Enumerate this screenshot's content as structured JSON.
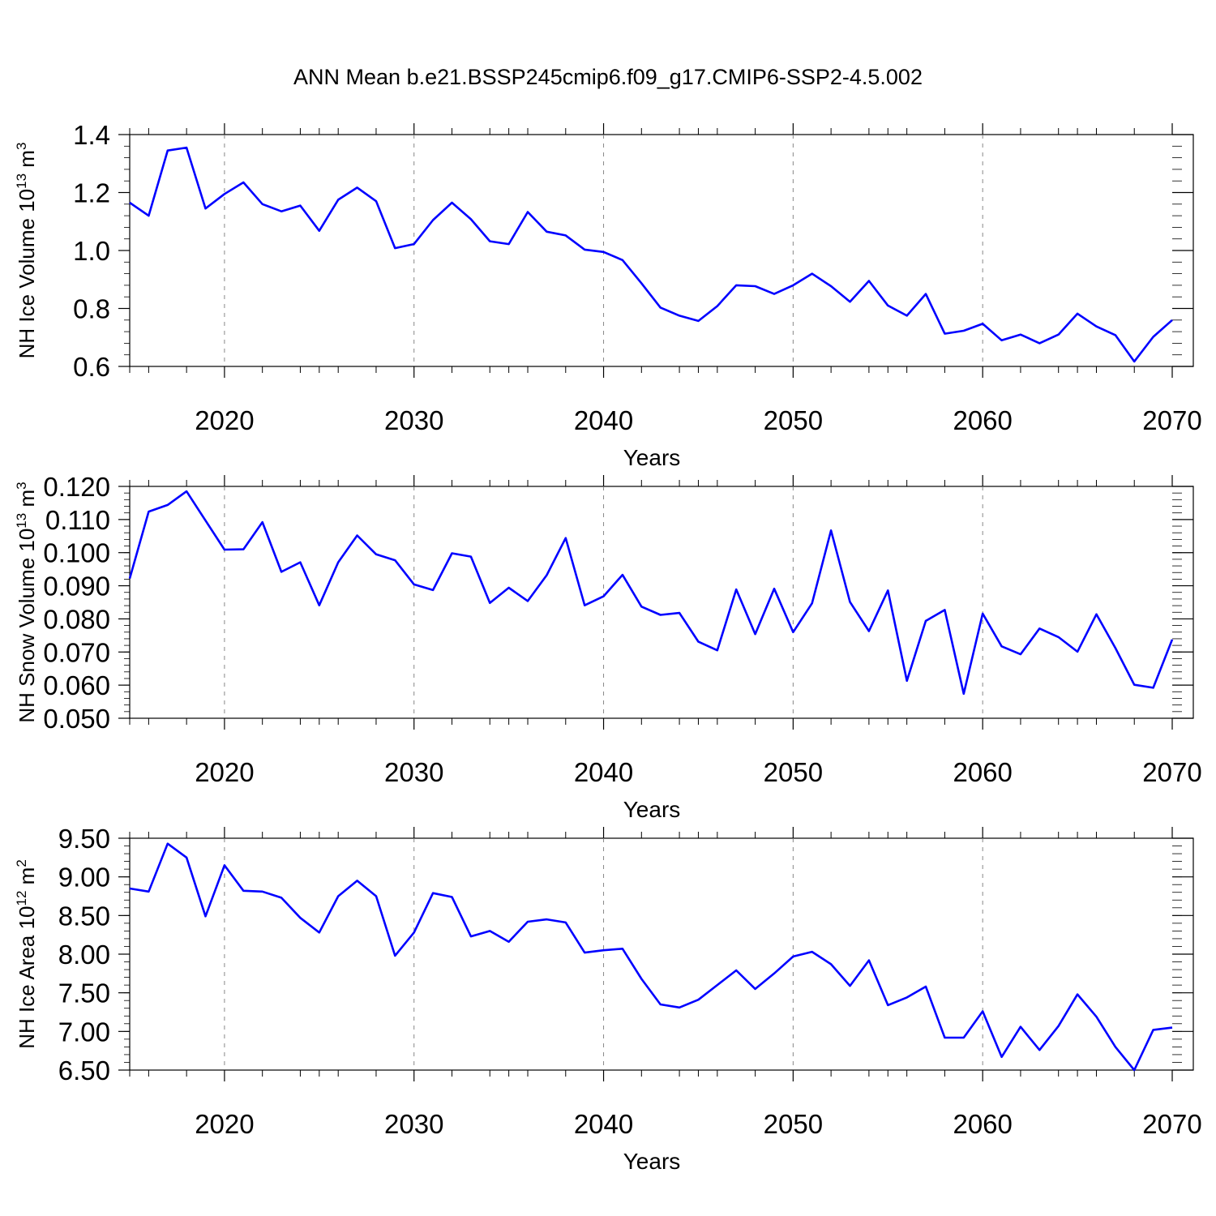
{
  "title": "ANN Mean b.e21.BSSP245cmip6.f09_g17.CMIP6-SSP2-4.5.002",
  "chart_data": [
    {
      "type": "line",
      "ylabel": "NH Ice Volume 10",
      "ylabel_exp": "13",
      "ylabel_unit": " m",
      "ylabel_unit_exp": "3",
      "xlabel": "Years",
      "xlim": [
        2015,
        2070
      ],
      "ylim": [
        0.6,
        1.4
      ],
      "y_major_ticks": [
        "0.6",
        "0.8",
        "1.0",
        "1.2",
        "1.4"
      ],
      "y_minor_step": 0.04,
      "x_major_ticks": [
        "2020",
        "2030",
        "2040",
        "2050",
        "2060",
        "2070"
      ],
      "line_color": "#0000ff",
      "grid": "vertical-dashed",
      "series": [
        {
          "x": [
            2015,
            2016,
            2017,
            2018,
            2019,
            2020,
            2021,
            2022,
            2023,
            2024,
            2025,
            2026,
            2027,
            2028,
            2029,
            2030,
            2031,
            2032,
            2033,
            2034,
            2035,
            2036,
            2037,
            2038,
            2039,
            2040,
            2041,
            2042,
            2043,
            2044,
            2045,
            2046,
            2047,
            2048,
            2049,
            2050,
            2051,
            2052,
            2053,
            2054,
            2055,
            2056,
            2057,
            2058,
            2059,
            2060,
            2061,
            2062,
            2063,
            2064,
            2065,
            2066,
            2067,
            2068,
            2069,
            2070
          ],
          "values": [
            1.165,
            1.12,
            1.345,
            1.355,
            1.145,
            1.195,
            1.235,
            1.16,
            1.135,
            1.155,
            1.068,
            1.175,
            1.217,
            1.17,
            1.008,
            1.022,
            1.105,
            1.165,
            1.108,
            1.032,
            1.022,
            1.133,
            1.065,
            1.052,
            1.003,
            0.995,
            0.967,
            0.887,
            0.803,
            0.775,
            0.757,
            0.808,
            0.88,
            0.877,
            0.85,
            0.88,
            0.92,
            0.877,
            0.823,
            0.895,
            0.81,
            0.775,
            0.85,
            0.713,
            0.723,
            0.747,
            0.69,
            0.71,
            0.68,
            0.71,
            0.782,
            0.738,
            0.708,
            0.617,
            0.702,
            0.76
          ]
        }
      ]
    },
    {
      "type": "line",
      "ylabel": "NH Snow Volume 10",
      "ylabel_exp": "13",
      "ylabel_unit": " m",
      "ylabel_unit_exp": "3",
      "xlabel": "Years",
      "xlim": [
        2015,
        2070
      ],
      "ylim": [
        0.05,
        0.12
      ],
      "y_major_ticks": [
        "0.050",
        "0.060",
        "0.070",
        "0.080",
        "0.090",
        "0.100",
        "0.110",
        "0.120"
      ],
      "y_minor_step": 0.002,
      "x_major_ticks": [
        "2020",
        "2030",
        "2040",
        "2050",
        "2060",
        "2070"
      ],
      "line_color": "#0000ff",
      "grid": "vertical-dashed",
      "series": [
        {
          "x": [
            2015,
            2016,
            2017,
            2018,
            2019,
            2020,
            2021,
            2022,
            2023,
            2024,
            2025,
            2026,
            2027,
            2028,
            2029,
            2030,
            2031,
            2032,
            2033,
            2034,
            2035,
            2036,
            2037,
            2038,
            2039,
            2040,
            2041,
            2042,
            2043,
            2044,
            2045,
            2046,
            2047,
            2048,
            2049,
            2050,
            2051,
            2052,
            2053,
            2054,
            2055,
            2056,
            2057,
            2058,
            2059,
            2060,
            2061,
            2062,
            2063,
            2064,
            2065,
            2066,
            2067,
            2068,
            2069,
            2070
          ],
          "values": [
            0.0922,
            0.1124,
            0.1144,
            0.1185,
            0.1097,
            0.1009,
            0.101,
            0.1092,
            0.0942,
            0.0971,
            0.0841,
            0.0971,
            0.1052,
            0.0995,
            0.0977,
            0.0904,
            0.0887,
            0.0998,
            0.0988,
            0.0848,
            0.0894,
            0.0854,
            0.0932,
            0.1044,
            0.0841,
            0.0868,
            0.0933,
            0.0837,
            0.0812,
            0.0818,
            0.0731,
            0.0705,
            0.0889,
            0.0754,
            0.0891,
            0.076,
            0.0847,
            0.1067,
            0.0851,
            0.0763,
            0.0886,
            0.0613,
            0.0794,
            0.0827,
            0.0574,
            0.0816,
            0.0717,
            0.0693,
            0.0771,
            0.0745,
            0.0701,
            0.0814,
            0.0712,
            0.0601,
            0.0592,
            0.0738
          ]
        }
      ]
    },
    {
      "type": "line",
      "ylabel": "NH Ice Area 10",
      "ylabel_exp": "12",
      "ylabel_unit": " m",
      "ylabel_unit_exp": "2",
      "xlabel": "Years",
      "xlim": [
        2015,
        2070
      ],
      "ylim": [
        6.5,
        9.5
      ],
      "y_major_ticks": [
        "6.50",
        "7.00",
        "7.50",
        "8.00",
        "8.50",
        "9.00",
        "9.50"
      ],
      "y_minor_step": 0.1,
      "x_major_ticks": [
        "2020",
        "2030",
        "2040",
        "2050",
        "2060",
        "2070"
      ],
      "line_color": "#0000ff",
      "grid": "vertical-dashed",
      "series": [
        {
          "x": [
            2015,
            2016,
            2017,
            2018,
            2019,
            2020,
            2021,
            2022,
            2023,
            2024,
            2025,
            2026,
            2027,
            2028,
            2029,
            2030,
            2031,
            2032,
            2033,
            2034,
            2035,
            2036,
            2037,
            2038,
            2039,
            2040,
            2041,
            2042,
            2043,
            2044,
            2045,
            2046,
            2047,
            2048,
            2049,
            2050,
            2051,
            2052,
            2053,
            2054,
            2055,
            2056,
            2057,
            2058,
            2059,
            2060,
            2061,
            2062,
            2063,
            2064,
            2065,
            2066,
            2067,
            2068,
            2069,
            2070
          ],
          "values": [
            8.85,
            8.81,
            9.43,
            9.25,
            8.49,
            9.15,
            8.82,
            8.81,
            8.73,
            8.47,
            8.28,
            8.75,
            8.95,
            8.75,
            7.98,
            8.28,
            8.79,
            8.74,
            8.23,
            8.3,
            8.16,
            8.42,
            8.45,
            8.41,
            8.02,
            8.05,
            8.07,
            7.68,
            7.35,
            7.31,
            7.41,
            7.6,
            7.79,
            7.55,
            7.75,
            7.97,
            8.03,
            7.87,
            7.59,
            7.92,
            7.34,
            7.44,
            7.58,
            6.92,
            6.92,
            7.26,
            6.67,
            7.06,
            6.76,
            7.07,
            7.48,
            7.19,
            6.8,
            6.5,
            7.02,
            7.05
          ]
        }
      ]
    }
  ]
}
